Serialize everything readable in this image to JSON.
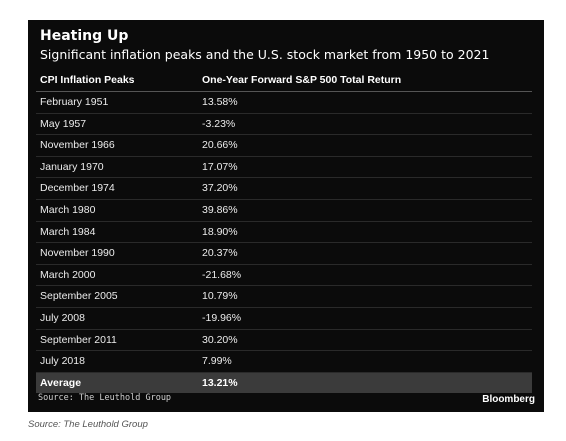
{
  "chart": {
    "title": "Heating Up",
    "subtitle": "Significant inflation peaks and the U.S. stock market from 1950 to 2021",
    "source_inner": "Source: The Leuthold Group",
    "brand": "Bloomberg",
    "source_outer": "Source: The Leuthold Group"
  },
  "chart_data": {
    "type": "table",
    "title": "Heating Up",
    "subtitle": "Significant inflation peaks and the U.S. stock market from 1950 to 2021",
    "columns": [
      "CPI Inflation Peaks",
      "One-Year Forward S&P 500 Total Return"
    ],
    "rows": [
      [
        "February 1951",
        "13.58%"
      ],
      [
        "May 1957",
        "-3.23%"
      ],
      [
        "November 1966",
        "20.66%"
      ],
      [
        "January 1970",
        "17.07%"
      ],
      [
        "December 1974",
        "37.20%"
      ],
      [
        "March 1980",
        "39.86%"
      ],
      [
        "March 1984",
        "18.90%"
      ],
      [
        "November 1990",
        "20.37%"
      ],
      [
        "March 2000",
        "-21.68%"
      ],
      [
        "September 2005",
        "10.79%"
      ],
      [
        "July 2008",
        "-19.96%"
      ],
      [
        "September 2011",
        "30.20%"
      ],
      [
        "July 2018",
        "7.99%"
      ]
    ],
    "summary_row": [
      "Average",
      "13.21%"
    ]
  }
}
